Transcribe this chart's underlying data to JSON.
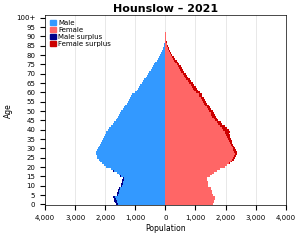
{
  "title": "Hounslow – 2021",
  "xlabel": "Population",
  "ylabel": "Age",
  "xlim": [
    -4000,
    4000
  ],
  "xticks": [
    -4000,
    -3000,
    -2000,
    -1000,
    0,
    1000,
    2000,
    3000,
    4000
  ],
  "xticklabels": [
    "4,000",
    "3,000",
    "2,000",
    "1,000",
    "0",
    "1,000",
    "2,000",
    "3,000",
    "4,000"
  ],
  "male_pop": [
    1650,
    1680,
    1700,
    1720,
    1730,
    1620,
    1600,
    1580,
    1560,
    1540,
    1480,
    1460,
    1440,
    1430,
    1410,
    1500,
    1550,
    1620,
    1730,
    1820,
    1980,
    2050,
    2120,
    2180,
    2220,
    2260,
    2280,
    2300,
    2290,
    2260,
    2240,
    2210,
    2180,
    2150,
    2120,
    2080,
    2050,
    2020,
    1990,
    1970,
    1920,
    1880,
    1810,
    1750,
    1700,
    1640,
    1600,
    1560,
    1530,
    1500,
    1460,
    1410,
    1370,
    1330,
    1290,
    1250,
    1210,
    1170,
    1130,
    1100,
    1010,
    960,
    920,
    880,
    840,
    790,
    750,
    700,
    660,
    610,
    570,
    530,
    490,
    450,
    410,
    370,
    330,
    290,
    250,
    215,
    178,
    148,
    120,
    95,
    73,
    55,
    40,
    29,
    20,
    13,
    9,
    6,
    4,
    2,
    1,
    1,
    0
  ],
  "female_pop": [
    1580,
    1600,
    1620,
    1640,
    1660,
    1570,
    1550,
    1540,
    1520,
    1500,
    1430,
    1420,
    1400,
    1390,
    1380,
    1480,
    1540,
    1610,
    1710,
    1800,
    1970,
    2060,
    2140,
    2210,
    2270,
    2320,
    2360,
    2380,
    2370,
    2340,
    2310,
    2280,
    2250,
    2220,
    2200,
    2170,
    2150,
    2130,
    2120,
    2140,
    2100,
    2040,
    1970,
    1890,
    1840,
    1760,
    1710,
    1670,
    1640,
    1610,
    1570,
    1520,
    1480,
    1440,
    1390,
    1350,
    1310,
    1270,
    1230,
    1200,
    1140,
    1090,
    1050,
    1010,
    960,
    910,
    860,
    810,
    760,
    710,
    670,
    630,
    590,
    550,
    510,
    460,
    415,
    370,
    325,
    280,
    235,
    195,
    160,
    130,
    103,
    80,
    60,
    44,
    32,
    22,
    15,
    9,
    6,
    3,
    2,
    1,
    1
  ],
  "color_male": "#3399ff",
  "color_female": "#ff6666",
  "color_male_surplus": "#00008b",
  "color_female_surplus": "#cc0000",
  "bar_height": 1.0,
  "legend_fontsize": 5,
  "title_fontsize": 8,
  "axis_fontsize": 5.5,
  "tick_fontsize": 5
}
